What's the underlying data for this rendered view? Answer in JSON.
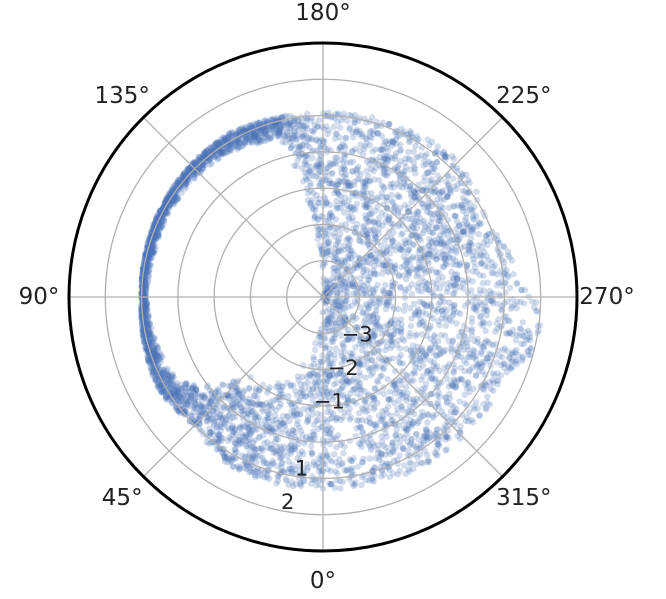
{
  "chart_data": {
    "type": "scatter",
    "projection": "polar",
    "title": "",
    "theta_zero_location": "S",
    "theta_direction": "clockwise",
    "angular_ticks": [
      "0°",
      "45°",
      "90°",
      "135°",
      "180°",
      "225°",
      "270°",
      "315°"
    ],
    "angular_tick_degrees": [
      0,
      45,
      90,
      135,
      180,
      225,
      270,
      315
    ],
    "radial_ticks": [
      "−3",
      "−2",
      "−1",
      "1",
      "2"
    ],
    "radial_tick_values": [
      -3,
      -2,
      -1,
      1,
      2
    ],
    "r_range": [
      -4,
      3
    ],
    "grid": true,
    "marker_color": "#4a72b8",
    "marker_alpha": 0.25,
    "series": [
      {
        "values_description_points": [
          {
            "theta": 0,
            "r_range": [
              -4,
              1.3
            ]
          },
          {
            "theta": 15,
            "r_range": [
              -2.2,
              1.3
            ]
          },
          {
            "theta": 30,
            "r_range": [
              -1.2,
              1.3
            ]
          },
          {
            "theta": 45,
            "r_range": [
              -1.0,
              1.0
            ]
          },
          {
            "theta": 60,
            "r_range": [
              0.6,
              1.2
            ]
          },
          {
            "theta": 75,
            "r_range": [
              0.75,
              1.1
            ]
          },
          {
            "theta": 90,
            "r_range": [
              0.85,
              1.0
            ]
          },
          {
            "theta": 105,
            "r_range": [
              0.8,
              1.05
            ]
          },
          {
            "theta": 120,
            "r_range": [
              0.8,
              1.1
            ]
          },
          {
            "theta": 135,
            "r_range": [
              0.8,
              1.15
            ]
          },
          {
            "theta": 150,
            "r_range": [
              0.7,
              1.2
            ]
          },
          {
            "theta": 165,
            "r_range": [
              0.5,
              1.1
            ]
          },
          {
            "theta": 180,
            "r_range": [
              -4,
              1.1
            ]
          },
          {
            "theta": 200,
            "r_range": [
              -4,
              1.15
            ]
          },
          {
            "theta": 225,
            "r_range": [
              -4,
              1.3
            ]
          },
          {
            "theta": 245,
            "r_range": [
              -4,
              1.0
            ]
          },
          {
            "theta": 255,
            "r_range": [
              -4,
              1.25
            ]
          },
          {
            "theta": 265,
            "r_range": [
              -4,
              1.5
            ]
          },
          {
            "theta": 270,
            "r_range": [
              -4,
              1.8
            ]
          },
          {
            "theta": 275,
            "r_range": [
              -4,
              2.1
            ]
          },
          {
            "theta": 282,
            "r_range": [
              -4,
              2.3
            ]
          },
          {
            "theta": 292,
            "r_range": [
              -4,
              1.5
            ]
          },
          {
            "theta": 315,
            "r_range": [
              -4,
              1.45
            ]
          },
          {
            "theta": 345,
            "r_range": [
              -4,
              1.35
            ]
          }
        ]
      }
    ]
  }
}
